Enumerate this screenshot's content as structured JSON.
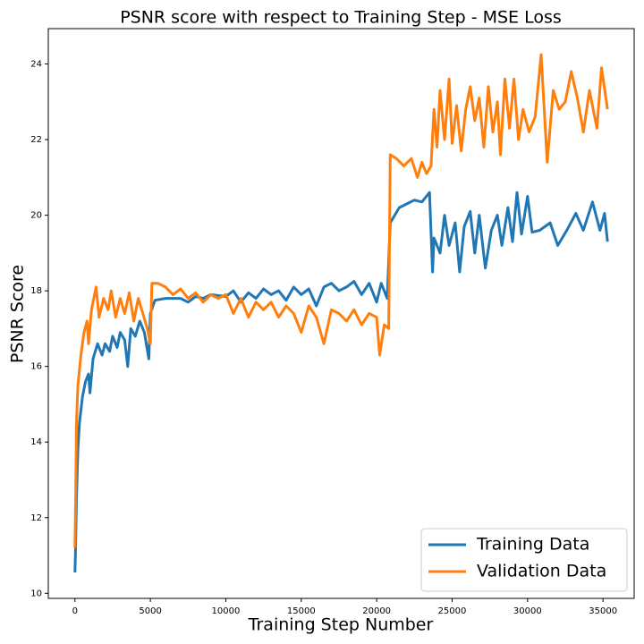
{
  "chart_data": {
    "type": "line",
    "title": "PSNR score with respect to Training Step - MSE Loss",
    "x_label": "Training Step Number",
    "y_label": "PSNR Score",
    "xlim": [
      -1765,
      37065
    ],
    "ylim": [
      9.865,
      24.935
    ],
    "xticks": [
      0,
      5000,
      10000,
      15000,
      20000,
      25000,
      30000,
      35000
    ],
    "yticks": [
      10,
      12,
      14,
      16,
      18,
      20,
      22,
      24
    ],
    "legend": "lower right",
    "series": [
      {
        "name": "Training Data",
        "color": "#1f77b4",
        "x": [
          0,
          50,
          100,
          200,
          300,
          500,
          700,
          900,
          1000,
          1200,
          1500,
          1800,
          2000,
          2300,
          2500,
          2800,
          3000,
          3300,
          3500,
          3700,
          4000,
          4300,
          4600,
          4900,
          5000,
          5300,
          6000,
          7000,
          7500,
          8000,
          8500,
          9000,
          10000,
          10500,
          11000,
          11500,
          12000,
          12500,
          13000,
          13500,
          14000,
          14500,
          15000,
          15500,
          16000,
          16500,
          17000,
          17500,
          18000,
          18500,
          19000,
          19500,
          20000,
          20300,
          20700,
          20900,
          21500,
          22000,
          22500,
          23000,
          23500,
          23700,
          23800,
          24200,
          24500,
          24800,
          25200,
          25500,
          25800,
          26200,
          26500,
          26800,
          27200,
          27600,
          28000,
          28300,
          28700,
          29000,
          29300,
          29600,
          30000,
          30300,
          30800,
          31500,
          32000,
          32600,
          33200,
          33700,
          34300,
          34800,
          35100,
          35300
        ],
        "values": [
          10.55,
          11.3,
          12.5,
          13.8,
          14.5,
          15.2,
          15.6,
          15.8,
          15.3,
          16.2,
          16.6,
          16.3,
          16.6,
          16.4,
          16.8,
          16.5,
          16.9,
          16.7,
          16.0,
          17.0,
          16.8,
          17.2,
          16.9,
          16.2,
          17.4,
          17.75,
          17.8,
          17.8,
          17.7,
          17.85,
          17.8,
          17.9,
          17.85,
          18.0,
          17.7,
          17.95,
          17.8,
          18.05,
          17.9,
          18.0,
          17.75,
          18.1,
          17.9,
          18.05,
          17.6,
          18.1,
          18.2,
          18.0,
          18.1,
          18.25,
          17.9,
          18.2,
          17.7,
          18.2,
          17.8,
          19.8,
          20.2,
          20.3,
          20.4,
          20.35,
          20.6,
          18.5,
          19.4,
          19.0,
          20.0,
          19.2,
          19.8,
          18.5,
          19.7,
          20.1,
          19.0,
          20.0,
          18.6,
          19.6,
          20.0,
          19.2,
          20.2,
          19.3,
          20.6,
          19.5,
          20.5,
          19.55,
          19.6,
          19.8,
          19.2,
          19.6,
          20.05,
          19.6,
          20.35,
          19.6,
          20.05,
          19.3
        ]
      },
      {
        "name": "Validation Data",
        "color": "#ff7f0e",
        "x": [
          0,
          50,
          100,
          200,
          400,
          600,
          800,
          900,
          1100,
          1400,
          1600,
          1900,
          2200,
          2400,
          2700,
          3000,
          3300,
          3600,
          3900,
          4200,
          4500,
          4800,
          5000,
          5100,
          5500,
          6000,
          6500,
          7000,
          7500,
          8000,
          8500,
          9000,
          9500,
          10000,
          10500,
          11000,
          11500,
          12000,
          12500,
          13000,
          13500,
          14000,
          14500,
          15000,
          15500,
          16000,
          16500,
          17000,
          17500,
          18000,
          18500,
          19000,
          19500,
          20000,
          20200,
          20500,
          20800,
          20900,
          21300,
          21800,
          22300,
          22700,
          23000,
          23300,
          23600,
          23800,
          24000,
          24200,
          24500,
          24800,
          25000,
          25300,
          25600,
          25900,
          26200,
          26500,
          26800,
          27100,
          27400,
          27700,
          28000,
          28200,
          28500,
          28800,
          29100,
          29400,
          29700,
          30100,
          30500,
          30900,
          31300,
          31700,
          32100,
          32500,
          32900,
          33300,
          33700,
          34100,
          34600,
          34900,
          35300
        ],
        "values": [
          11.2,
          12.5,
          14.5,
          15.5,
          16.3,
          16.9,
          17.2,
          16.6,
          17.5,
          18.1,
          17.3,
          17.8,
          17.5,
          18.0,
          17.3,
          17.8,
          17.4,
          17.95,
          17.2,
          17.8,
          17.4,
          17.0,
          16.6,
          18.2,
          18.2,
          18.1,
          17.9,
          18.05,
          17.8,
          17.95,
          17.7,
          17.9,
          17.8,
          17.9,
          17.4,
          17.8,
          17.3,
          17.7,
          17.5,
          17.7,
          17.3,
          17.6,
          17.4,
          16.9,
          17.6,
          17.3,
          16.6,
          17.5,
          17.4,
          17.2,
          17.5,
          17.1,
          17.4,
          17.3,
          16.3,
          17.1,
          17.0,
          21.6,
          21.5,
          21.3,
          21.5,
          21.0,
          21.4,
          21.1,
          21.3,
          22.8,
          21.8,
          23.3,
          22.0,
          23.6,
          21.9,
          22.9,
          21.7,
          22.8,
          23.4,
          22.5,
          23.1,
          21.8,
          23.4,
          22.2,
          23.0,
          21.6,
          23.6,
          22.3,
          23.6,
          22.0,
          22.8,
          22.2,
          22.6,
          24.25,
          21.4,
          23.3,
          22.8,
          23.0,
          23.8,
          23.1,
          22.2,
          23.3,
          22.3,
          23.9,
          22.8
        ]
      }
    ]
  }
}
